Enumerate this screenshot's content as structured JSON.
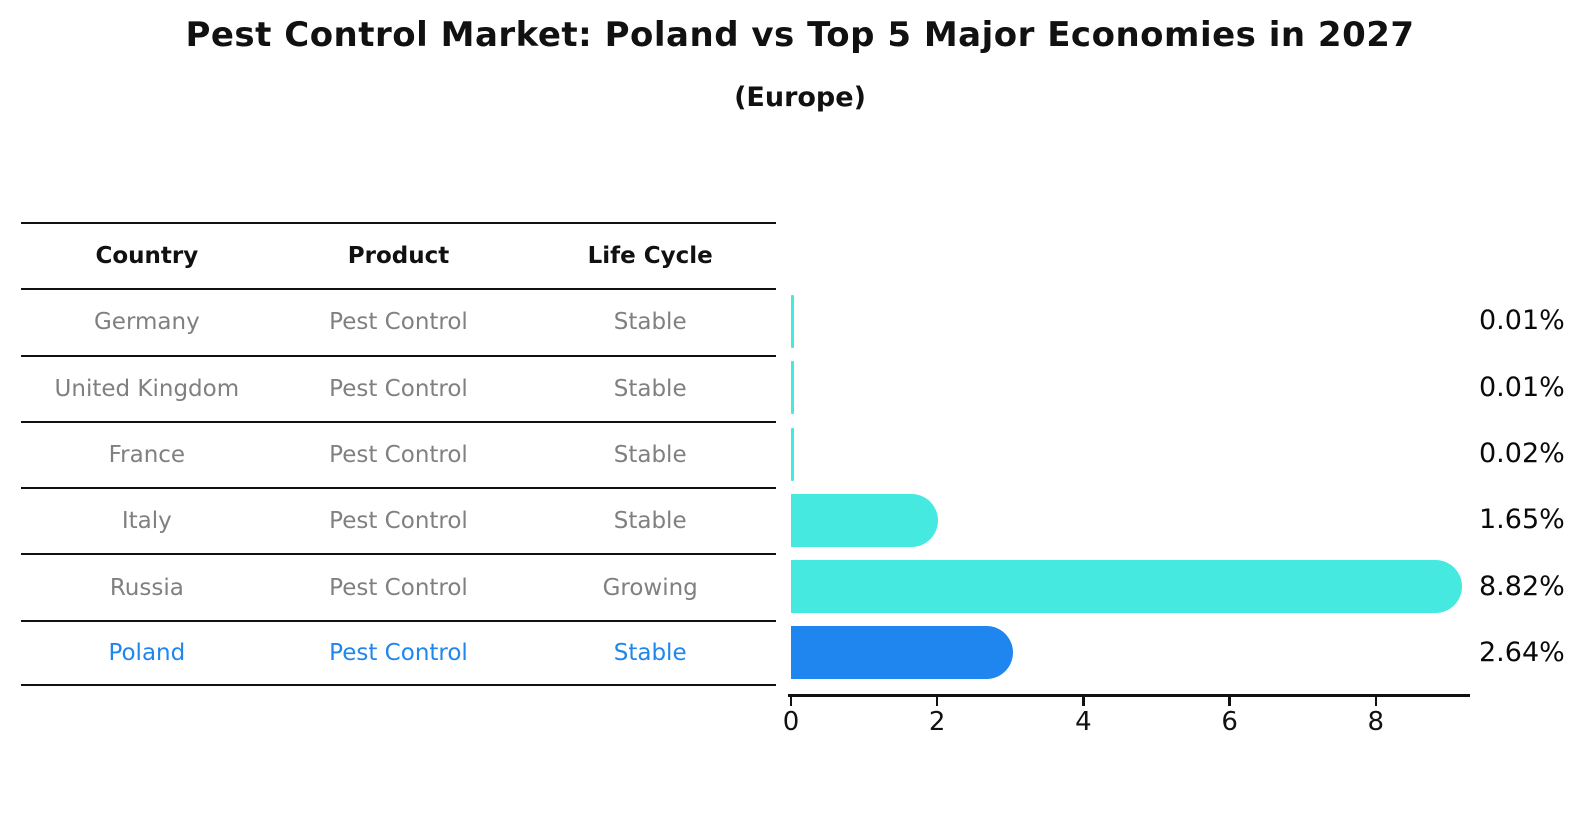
{
  "header": {
    "title": "Pest Control Market: Poland vs Top 5 Major Economies in 2027",
    "subtitle": "(Europe)"
  },
  "table": {
    "headers": [
      "Country",
      "Product",
      "Life Cycle"
    ],
    "rows": [
      {
        "country": "Germany",
        "product": "Pest Control",
        "life_cycle": "Stable",
        "highlight": false
      },
      {
        "country": "United Kingdom",
        "product": "Pest Control",
        "life_cycle": "Stable",
        "highlight": false
      },
      {
        "country": "France",
        "product": "Pest Control",
        "life_cycle": "Stable",
        "highlight": false
      },
      {
        "country": "Italy",
        "product": "Pest Control",
        "life_cycle": "Stable",
        "highlight": false
      },
      {
        "country": "Russia",
        "product": "Pest Control",
        "life_cycle": "Growing",
        "highlight": false
      },
      {
        "country": "Poland",
        "product": "Pest Control",
        "life_cycle": "Stable",
        "highlight": true
      }
    ]
  },
  "chart_data": {
    "type": "bar",
    "orientation": "horizontal",
    "title": "Pest Control Market: Poland vs Top 5 Major Economies in 2027",
    "subtitle": "(Europe)",
    "categories": [
      "Germany",
      "United Kingdom",
      "France",
      "Italy",
      "Russia",
      "Poland"
    ],
    "values": [
      0.01,
      0.01,
      0.02,
      1.65,
      8.82,
      2.64
    ],
    "value_labels": [
      "0.01%",
      "0.01%",
      "0.02%",
      "1.65%",
      "8.82%",
      "2.64%"
    ],
    "xlabel": "",
    "ylabel": "",
    "xlim": [
      0,
      9.3
    ],
    "xticks": [
      0,
      2,
      4,
      6,
      8
    ],
    "xtick_labels": [
      "0",
      "2",
      "4",
      "6",
      "8"
    ],
    "grid": false,
    "legend": false,
    "highlight_index": 5
  },
  "colors": {
    "bar": "#45e9e0",
    "highlight_bar": "#1e86ee",
    "highlight_text": "#1e86ee",
    "axis": "#111111",
    "table_text": "#808080",
    "header_text": "#111111",
    "value_text": "#0a0a0a"
  }
}
